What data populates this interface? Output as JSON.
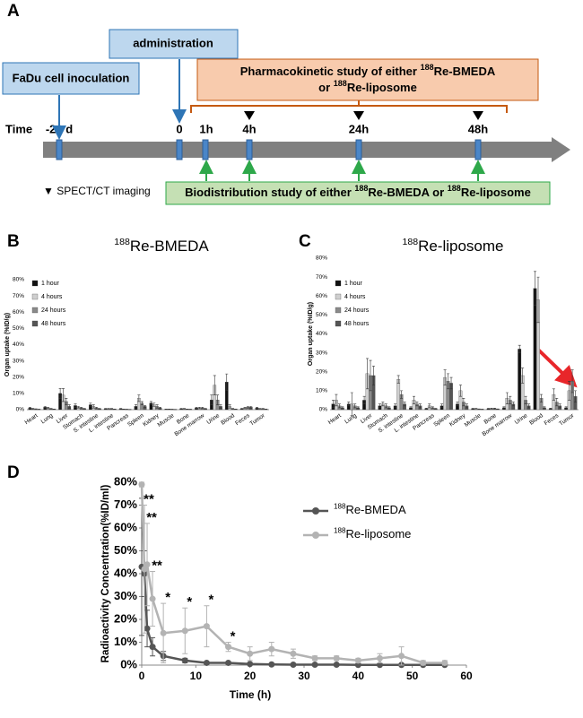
{
  "panel_labels": [
    "A",
    "B",
    "C",
    "D"
  ],
  "timeline": {
    "axis_label": "Time",
    "time_labels": [
      "-21 d",
      "0",
      "1h",
      "4h",
      "24h",
      "48h"
    ],
    "inoculation": "FaDu cell inoculation",
    "administration": "administration",
    "pk_study": {
      "line1": "Pharmacokinetic study of either ",
      "sup1": "188",
      "name1": "Re-BMEDA",
      "line2": "or ",
      "sup2": "188",
      "name2": "Re-liposome"
    },
    "biodistribution": {
      "text": "Biodistribution study of either ",
      "sup1": "188",
      "name1": "Re-BMEDA or ",
      "sup2": "188",
      "name2": "Re-liposome"
    },
    "imaging_legend": "▼ SPECT/CT imaging"
  },
  "chart_data": [
    {
      "type": "bar",
      "title_superscript": "188",
      "title": "Re-BMEDA",
      "y_label": "Organ uptake (%ID/g)",
      "categories": [
        "Heart",
        "Lung",
        "Liver",
        "Stomach",
        "S. intestine",
        "L. intestine",
        "Pancreas",
        "Spleen",
        "Kidney",
        "Muscle",
        "Bone",
        "Bone marrow",
        "Urine",
        "Blood",
        "Feces",
        "Tumor"
      ],
      "series": [
        {
          "name": "1 hour",
          "color": "#111111",
          "values": [
            1,
            1.5,
            10,
            2.5,
            3,
            0.5,
            0.5,
            2,
            4,
            0.3,
            0.5,
            1,
            6,
            17,
            0.5,
            1
          ],
          "errors": [
            0.5,
            0.5,
            3,
            1,
            1,
            0.2,
            0.2,
            1,
            1,
            0.1,
            0.2,
            0.5,
            3,
            5,
            0.3,
            0.5
          ]
        },
        {
          "name": "4 hours",
          "color": "#cfcfcf",
          "values": [
            0.5,
            1,
            9,
            1.5,
            2,
            0.5,
            0.3,
            7,
            3,
            0.3,
            0.5,
            1,
            15,
            2,
            1,
            0.5
          ],
          "errors": [
            0.3,
            0.5,
            4,
            0.5,
            1,
            0.2,
            0.1,
            2,
            1,
            0.1,
            0.2,
            0.5,
            6,
            1,
            0.5,
            0.2
          ]
        },
        {
          "name": "24 hours",
          "color": "#8a8a8a",
          "values": [
            0.3,
            0.5,
            5,
            1,
            1,
            0.5,
            0.2,
            4,
            2,
            0.2,
            0.3,
            1,
            6,
            0.5,
            1.5,
            0.5
          ],
          "errors": [
            0.2,
            0.2,
            2,
            0.5,
            0.5,
            0.2,
            0.1,
            1,
            1,
            0.1,
            0.1,
            0.5,
            3,
            0.2,
            0.5,
            0.2
          ]
        },
        {
          "name": "48 hours",
          "color": "#555555",
          "values": [
            0.2,
            0.3,
            2,
            0.5,
            0.5,
            0.3,
            0.1,
            2,
            1,
            0.1,
            0.2,
            0.5,
            2,
            0.3,
            1.5,
            0.3
          ],
          "errors": [
            0.1,
            0.1,
            1,
            0.2,
            0.2,
            0.1,
            0.1,
            0.5,
            0.5,
            0.1,
            0.1,
            0.2,
            1,
            0.1,
            0.5,
            0.1
          ]
        }
      ],
      "ylim": [
        0,
        80
      ],
      "yticks": [
        {
          "value": 0,
          "label": "0%"
        },
        {
          "value": 10,
          "label": "10%"
        },
        {
          "value": 20,
          "label": "20%"
        },
        {
          "value": 30,
          "label": "30%"
        },
        {
          "value": 40,
          "label": "40%"
        },
        {
          "value": 50,
          "label": "50%"
        },
        {
          "value": 60,
          "label": "60%"
        },
        {
          "value": 70,
          "label": "70%"
        },
        {
          "value": 80,
          "label": "80%"
        }
      ],
      "grid": false,
      "legend": "upper left"
    },
    {
      "type": "bar",
      "title_superscript": "188",
      "title": "Re-liposome",
      "y_label": "Organ uptake (%ID/g)",
      "categories": [
        "Heart",
        "Lung",
        "Liver",
        "Stomach",
        "S. intestine",
        "L. intestine",
        "Pancreas",
        "Spleen",
        "Kidney",
        "Muscle",
        "Bone",
        "Bone marrow",
        "Urine",
        "Blood",
        "Feces",
        "Tumor"
      ],
      "series": [
        {
          "name": "1 hour",
          "color": "#111111",
          "values": [
            3,
            3,
            5,
            2,
            2,
            1,
            0.5,
            2,
            3,
            0.5,
            0.5,
            1,
            32,
            64,
            0.5,
            1
          ],
          "errors": [
            2,
            1,
            2,
            1,
            1,
            0.5,
            0.3,
            1,
            1,
            0.2,
            0.2,
            0.5,
            2,
            9,
            0.3,
            0.5
          ]
        },
        {
          "name": "4 hours",
          "color": "#cfcfcf",
          "values": [
            5,
            3,
            19,
            3,
            16,
            5,
            2,
            17,
            10,
            0.5,
            0.5,
            6,
            18,
            58,
            8,
            10
          ],
          "errors": [
            3,
            6,
            8,
            1,
            2,
            2,
            1,
            4,
            3,
            0.2,
            0.3,
            3,
            4,
            12,
            3,
            5
          ]
        },
        {
          "name": "24 hours",
          "color": "#8a8a8a",
          "values": [
            2,
            2,
            18,
            2,
            8,
            3,
            1,
            15,
            4,
            0.3,
            0.5,
            5,
            5,
            6,
            4,
            15
          ],
          "errors": [
            1,
            1,
            8,
            1,
            2,
            1,
            0.5,
            4,
            2,
            0.1,
            0.3,
            2,
            2,
            2,
            2,
            6
          ]
        },
        {
          "name": "48 hours",
          "color": "#555555",
          "values": [
            1,
            1,
            18,
            1,
            3,
            2,
            0.5,
            14,
            2,
            0.2,
            0.3,
            3,
            2,
            1,
            2,
            7
          ],
          "errors": [
            0.5,
            0.5,
            5,
            0.5,
            1,
            1,
            0.2,
            3,
            1,
            0.1,
            0.1,
            1,
            1,
            0.5,
            1,
            3
          ]
        }
      ],
      "ylim": [
        0,
        80
      ],
      "yticks": [
        {
          "value": 0,
          "label": "0%"
        },
        {
          "value": 10,
          "label": "10%"
        },
        {
          "value": 20,
          "label": "20%"
        },
        {
          "value": 30,
          "label": "30%"
        },
        {
          "value": 40,
          "label": "40%"
        },
        {
          "value": 50,
          "label": "50%"
        },
        {
          "value": 60,
          "label": "60%"
        },
        {
          "value": 70,
          "label": "70%"
        },
        {
          "value": 80,
          "label": "80%"
        }
      ],
      "grid": false,
      "legend": "upper left"
    },
    {
      "type": "line",
      "x_label": "Time (h)",
      "y_label": "Radioactivity Concentration(%ID/ml)",
      "x": [
        0,
        0.5,
        1,
        2,
        4,
        8,
        12,
        16,
        20,
        24,
        28,
        32,
        36,
        40,
        44,
        48,
        52,
        56
      ],
      "series": [
        {
          "name_superscript": "188",
          "name": "Re-BMEDA",
          "color": "#555555",
          "values": [
            43,
            40,
            16,
            8,
            4,
            2,
            1,
            1,
            0.5,
            0.3,
            0.2,
            0.2,
            0.2,
            0.1,
            0.1,
            0.1,
            0.1,
            0.1
          ],
          "errors": [
            30,
            10,
            8,
            4,
            2,
            1,
            0.5,
            0.5,
            0.3,
            0.2,
            0.1,
            0.1,
            0.1,
            0.1,
            0.1,
            0.1,
            0.1,
            0.1
          ]
        },
        {
          "name_superscript": "188",
          "name": "Re-liposome",
          "color": "#b3b3b3",
          "values": [
            79,
            42,
            44,
            29,
            14,
            15,
            17,
            8,
            5,
            7,
            5,
            3,
            3,
            2,
            3,
            4,
            1,
            1
          ],
          "errors": [
            1,
            28,
            18,
            12,
            13,
            10,
            9,
            2,
            3,
            3,
            2,
            1,
            1,
            1,
            2,
            4,
            1,
            1
          ]
        }
      ],
      "annotations": [
        {
          "text": "**",
          "x": 0.5
        },
        {
          "text": "**",
          "x": 1
        },
        {
          "text": "**",
          "x": 2
        },
        {
          "text": "*",
          "x": 4
        },
        {
          "text": "*",
          "x": 8
        },
        {
          "text": "*",
          "x": 12
        },
        {
          "text": "*",
          "x": 16
        }
      ],
      "xlim": [
        0,
        60
      ],
      "xticks": [
        0,
        10,
        20,
        30,
        40,
        50,
        60
      ],
      "ylim": [
        0,
        80
      ],
      "yticks": [
        {
          "value": 0,
          "label": "0%"
        },
        {
          "value": 10,
          "label": "10%"
        },
        {
          "value": 20,
          "label": "20%"
        },
        {
          "value": 30,
          "label": "30%"
        },
        {
          "value": 40,
          "label": "40%"
        },
        {
          "value": 50,
          "label": "50%"
        },
        {
          "value": 60,
          "label": "60%"
        },
        {
          "value": 70,
          "label": "70%"
        },
        {
          "value": 80,
          "label": "80%"
        }
      ],
      "grid": false,
      "legend": "upper right"
    }
  ]
}
